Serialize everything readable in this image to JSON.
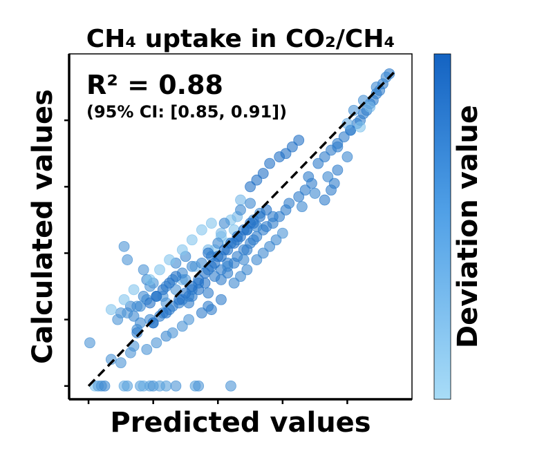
{
  "chart_data": {
    "type": "scatter",
    "title": "CH₄ uptake in CO₂/CH₄",
    "xlabel": "Predicted values",
    "ylabel": "Calculated values",
    "annotation_main": "R² = 0.88",
    "annotation_ci": "(95% CI: [0.85, 0.91])",
    "colorbar_label": "Deviation value",
    "xlim": [
      -0.3,
      5.0
    ],
    "ylim": [
      -0.2,
      5.0
    ],
    "reference_line": {
      "x": [
        0,
        4.75
      ],
      "y": [
        0,
        4.75
      ],
      "style": "dashed",
      "color": "#000000"
    },
    "colors": {
      "high": "#1565c0",
      "low": "#9fdcf8",
      "mid": "#3b8ee0"
    },
    "points": {
      "x": [
        0.1,
        0.15,
        0.2,
        0.25,
        0.55,
        0.6,
        0.8,
        0.85,
        0.95,
        1.0,
        1.1,
        1.2,
        1.35,
        1.65,
        1.7,
        2.2,
        0.02,
        0.35,
        0.5,
        0.65,
        0.7,
        0.9,
        1.05,
        1.2,
        1.3,
        1.45,
        1.55,
        0.75,
        0.95,
        1.15,
        1.3,
        1.45,
        1.6,
        1.7,
        1.85,
        0.8,
        1.0,
        1.1,
        1.25,
        1.4,
        1.55,
        1.7,
        1.8,
        1.95,
        2.05,
        2.15,
        2.3,
        2.4,
        2.5,
        2.6,
        2.7,
        2.85,
        2.95,
        3.05,
        3.1,
        3.25,
        3.35,
        3.45,
        3.3,
        3.5,
        3.7,
        3.65,
        3.75,
        3.8,
        3.85,
        4.0,
        2.25,
        2.35,
        2.45,
        2.6,
        2.7,
        2.8,
        2.9,
        3.0,
        2.15,
        2.25,
        1.95,
        2.05,
        2.2,
        1.45,
        1.65,
        1.85,
        2.05,
        2.3,
        2.35,
        0.6,
        0.75,
        0.95,
        1.05,
        1.2,
        1.35,
        1.5,
        0.55,
        0.6,
        0.85,
        1.0,
        1.15,
        1.35,
        1.5,
        2.0,
        2.1,
        2.35,
        2.5,
        2.65,
        2.6,
        2.55,
        2.3,
        2.45,
        2.4,
        2.15,
        1.55,
        1.6,
        1.75,
        1.85,
        1.9,
        2.05,
        0.9,
        0.85,
        0.65,
        0.5,
        0.45,
        0.7,
        0.8,
        0.9,
        1.05,
        1.2,
        1.3,
        1.45,
        1.6,
        1.75,
        1.9,
        0.95,
        1.05,
        1.15,
        1.25,
        1.35,
        0.75,
        1.0,
        1.2,
        1.4,
        1.5,
        1.6,
        1.7,
        1.8,
        1.9,
        2.0,
        2.1,
        2.2,
        2.3,
        2.4,
        2.5,
        1.85,
        1.95,
        2.05,
        2.15,
        2.25,
        2.35,
        2.45,
        2.55,
        2.65,
        2.75,
        3.4,
        3.55,
        3.65,
        3.75,
        3.85,
        4.05,
        4.15,
        4.25,
        4.35,
        4.45,
        4.55,
        4.65,
        3.85,
        3.95,
        4.05,
        4.2,
        4.3,
        4.4,
        4.5,
        4.45,
        4.6,
        4.1,
        4.25,
        4.35,
        4.0,
        4.2,
        2.5,
        2.6,
        2.7,
        2.8,
        2.95,
        3.05,
        3.15,
        3.25,
        1.85,
        2.05,
        2.15,
        2.25,
        2.45,
        2.55,
        2.75,
        2.85,
        0.35,
        0.55,
        0.7,
        0.95,
        1.1,
        1.25,
        1.45,
        1.6,
        1.75,
        1.9
      ],
      "y": [
        0,
        0,
        0,
        0,
        0,
        0,
        0,
        0,
        0,
        0,
        0,
        0,
        0,
        0,
        0,
        0,
        0.65,
        0.4,
        0.35,
        0.5,
        0.6,
        0.55,
        0.65,
        0.75,
        0.8,
        0.9,
        1.0,
        0.85,
        1.0,
        1.1,
        1.2,
        1.3,
        1.45,
        1.55,
        1.75,
        0.95,
        0.95,
        1.05,
        1.15,
        1.25,
        1.35,
        1.45,
        1.55,
        1.65,
        1.75,
        1.85,
        1.95,
        2.05,
        2.15,
        2.25,
        2.35,
        2.45,
        2.55,
        2.65,
        2.75,
        2.85,
        2.95,
        3.05,
        2.7,
        2.9,
        3.15,
        2.8,
        2.95,
        3.05,
        3.25,
        3.45,
        1.55,
        1.65,
        1.75,
        1.9,
        2.0,
        2.1,
        2.2,
        2.3,
        2.15,
        2.35,
        2.05,
        2.25,
        2.5,
        1.6,
        1.8,
        2.05,
        2.3,
        2.55,
        2.8,
        1.1,
        1.2,
        1.5,
        1.35,
        1.25,
        1.45,
        1.6,
        2.1,
        1.9,
        1.75,
        1.55,
        1.35,
        1.85,
        1.95,
        2.15,
        2.45,
        2.65,
        2.75,
        2.6,
        2.4,
        2.5,
        2.2,
        2.35,
        1.9,
        1.8,
        1.25,
        1.35,
        1.1,
        1.2,
        1.15,
        1.3,
        1.6,
        1.35,
        1.2,
        1.1,
        1.0,
        1.05,
        1.2,
        1.3,
        1.35,
        1.5,
        1.6,
        1.7,
        1.8,
        1.85,
        1.95,
        1.25,
        1.35,
        1.45,
        1.55,
        1.65,
        0.8,
        0.95,
        1.1,
        1.3,
        1.4,
        1.5,
        1.6,
        1.7,
        1.8,
        1.95,
        2.05,
        2.15,
        2.25,
        2.35,
        2.45,
        2.0,
        1.85,
        1.95,
        2.05,
        2.15,
        2.25,
        2.35,
        2.45,
        2.55,
        2.65,
        3.15,
        3.35,
        3.45,
        3.55,
        3.65,
        3.85,
        3.95,
        4.1,
        4.25,
        4.4,
        4.55,
        4.7,
        3.6,
        3.75,
        3.85,
        4.0,
        4.15,
        4.3,
        4.45,
        4.5,
        4.65,
        4.15,
        4.3,
        4.2,
        3.95,
        3.9,
        3.0,
        3.1,
        3.2,
        3.35,
        3.45,
        3.5,
        3.6,
        3.7,
        1.4,
        1.6,
        1.7,
        1.85,
        2.05,
        2.2,
        2.4,
        2.55,
        1.15,
        1.3,
        1.45,
        1.6,
        1.75,
        1.9,
        2.05,
        2.2,
        2.35,
        2.45
      ],
      "deviation": [
        0.2,
        0.5,
        0.6,
        0.7,
        0.4,
        0.5,
        0.5,
        0.4,
        0.5,
        0.6,
        0.5,
        0.5,
        0.6,
        0.5,
        0.6,
        0.6,
        0.6,
        0.6,
        0.6,
        0.6,
        0.6,
        0.6,
        0.6,
        0.7,
        0.6,
        0.6,
        0.6,
        0.7,
        0.7,
        0.8,
        0.8,
        0.8,
        0.8,
        0.8,
        0.8,
        0.7,
        0.8,
        0.8,
        0.8,
        0.8,
        0.8,
        0.9,
        0.9,
        0.8,
        0.8,
        0.8,
        0.8,
        0.8,
        0.8,
        0.8,
        0.8,
        0.8,
        0.8,
        0.8,
        0.8,
        0.8,
        0.8,
        0.8,
        0.7,
        0.7,
        0.7,
        0.8,
        0.8,
        0.8,
        0.8,
        0.7,
        0.7,
        0.7,
        0.7,
        0.7,
        0.7,
        0.7,
        0.7,
        0.6,
        0.2,
        0.2,
        0.2,
        0.2,
        0.2,
        0.3,
        0.3,
        0.3,
        0.3,
        0.3,
        0.3,
        0.6,
        0.6,
        0.6,
        0.6,
        0.6,
        0.6,
        0.6,
        0.6,
        0.6,
        0.6,
        0.6,
        0.6,
        0.7,
        0.7,
        0.7,
        0.7,
        0.7,
        0.7,
        0.7,
        0.7,
        0.7,
        0.7,
        0.7,
        0.7,
        0.7,
        0.8,
        0.8,
        0.8,
        0.8,
        0.8,
        0.8,
        0.7,
        0.7,
        0.7,
        0.6,
        0.6,
        0.7,
        0.7,
        0.7,
        0.7,
        0.7,
        0.7,
        0.7,
        0.7,
        0.7,
        0.7,
        0.9,
        0.9,
        0.9,
        0.9,
        0.9,
        0.8,
        0.9,
        0.9,
        0.9,
        0.9,
        0.9,
        0.9,
        0.9,
        0.9,
        0.9,
        0.9,
        0.9,
        0.9,
        0.9,
        0.9,
        0.9,
        0.9,
        0.9,
        0.9,
        0.9,
        0.9,
        0.9,
        0.9,
        0.9,
        0.9,
        0.8,
        0.8,
        0.8,
        0.8,
        0.8,
        0.8,
        0.8,
        0.8,
        0.8,
        0.8,
        0.8,
        0.8,
        0.8,
        0.8,
        0.8,
        0.8,
        0.8,
        0.8,
        0.8,
        0.7,
        0.7,
        0.6,
        0.6,
        0.3,
        0.4,
        0.2,
        0.9,
        0.9,
        0.9,
        0.9,
        0.9,
        0.9,
        0.9,
        0.9,
        0.8,
        0.8,
        0.8,
        0.8,
        0.8,
        0.8,
        0.8,
        0.8,
        0.2,
        0.2,
        0.2,
        0.2,
        0.2,
        0.2,
        0.2,
        0.2,
        0.2,
        0.2
      ]
    }
  }
}
